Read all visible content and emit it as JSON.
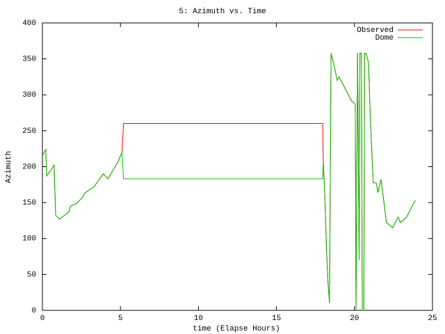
{
  "chart_data": {
    "type": "line",
    "title": "5: Azimuth vs. Time",
    "x_label": "time (Elapse Hours)",
    "y_label": "Azimuth",
    "x": [
      0,
      0.22,
      0.27,
      0.7,
      0.75,
      0.85,
      1.1,
      1.7,
      1.8,
      2.2,
      2.6,
      2.7,
      3.3,
      3.9,
      4.2,
      4.85,
      5.0,
      5.1,
      5.2,
      17.96,
      18.0,
      18.1,
      18.2,
      18.3,
      18.4,
      18.5,
      18.7,
      18.9,
      19.0,
      19.35,
      19.8,
      20.05,
      20.1,
      20.2,
      20.3,
      20.35,
      20.45,
      20.5,
      20.6,
      20.65,
      20.75,
      20.9,
      21.0,
      21.2,
      21.4,
      21.5,
      21.7,
      21.8,
      22.05,
      22.45,
      22.8,
      22.95,
      23.35,
      23.6,
      23.9
    ],
    "series": [
      {
        "name": "Observed",
        "color": "#ff0000",
        "values": [
          215,
          224,
          187,
          200,
          202,
          132,
          127,
          137,
          145,
          149,
          158,
          163,
          172,
          190,
          183,
          207,
          215,
          219,
          260,
          260,
          210,
          160,
          90,
          40,
          10,
          358,
          340,
          320,
          325,
          311,
          292,
          287,
          0,
          358,
          70,
          358,
          358,
          0,
          0,
          358,
          357,
          345,
          277,
          178,
          177,
          164,
          182,
          166,
          122,
          115,
          130,
          122,
          130,
          141,
          153
        ]
      },
      {
        "name": "Dome",
        "color": "#00c000",
        "values": [
          215,
          224,
          187,
          200,
          202,
          132,
          127,
          137,
          145,
          149,
          158,
          163,
          172,
          190,
          183,
          207,
          215,
          219,
          183,
          183,
          205,
          160,
          90,
          40,
          10,
          358,
          340,
          320,
          325,
          311,
          292,
          287,
          0,
          358,
          70,
          358,
          358,
          0,
          0,
          358,
          357,
          345,
          277,
          178,
          177,
          164,
          182,
          166,
          122,
          115,
          130,
          122,
          130,
          141,
          153
        ]
      }
    ],
    "xlim": [
      0,
      25
    ],
    "xticks": [
      0,
      5,
      10,
      15,
      20,
      25
    ],
    "ylim": [
      0,
      400
    ],
    "yticks": [
      0,
      50,
      100,
      150,
      200,
      250,
      300,
      350,
      400
    ],
    "grid": false,
    "legend": "top-right"
  }
}
